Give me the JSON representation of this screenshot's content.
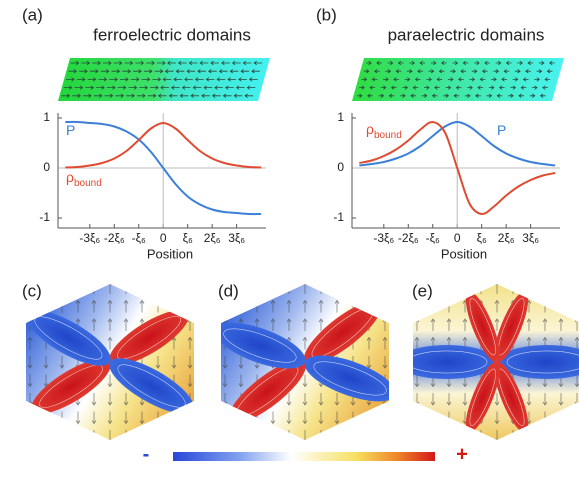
{
  "chart_data": [
    {
      "type": "line",
      "label": "(a)",
      "title": "ferroelectric domains",
      "xlabel": "Position",
      "x": [
        -4,
        -3.5,
        -3,
        -2.5,
        -2,
        -1.5,
        -1,
        -0.5,
        0,
        0.5,
        1,
        1.5,
        2,
        2.5,
        3,
        3.5,
        4
      ],
      "series": [
        {
          "name": "P",
          "color": "#3a7fd8",
          "values": [
            0.92,
            0.92,
            0.9,
            0.88,
            0.83,
            0.73,
            0.57,
            0.32,
            0,
            -0.32,
            -0.57,
            -0.73,
            -0.83,
            -0.88,
            -0.9,
            -0.92,
            -0.92
          ]
        },
        {
          "name": "ρ",
          "name_subscript": "bound",
          "color": "#e04a30",
          "values": [
            0.01,
            0.02,
            0.05,
            0.1,
            0.19,
            0.34,
            0.56,
            0.79,
            0.9,
            0.79,
            0.56,
            0.34,
            0.19,
            0.1,
            0.05,
            0.02,
            0.01
          ]
        }
      ],
      "xlim": [
        -4.3,
        4.2
      ],
      "ylim": [
        -1.2,
        1.1
      ],
      "xticks": [
        {
          "value": -3,
          "label": "-3ξ₆"
        },
        {
          "value": -2,
          "label": "-2ξ₆"
        },
        {
          "value": -1,
          "label": "-ξ₆"
        },
        0,
        {
          "value": 1,
          "label": "ξ₆"
        },
        {
          "value": 2,
          "label": "2ξ₆"
        },
        {
          "value": 3,
          "label": "3ξ₆"
        }
      ],
      "yticks": [
        -1,
        0,
        1
      ]
    },
    {
      "type": "line",
      "label": "(b)",
      "title": "paraelectric domains",
      "xlabel": "Position",
      "x": [
        -4,
        -3.5,
        -3,
        -2.5,
        -2,
        -1.5,
        -1,
        -0.5,
        0,
        0.5,
        1,
        1.5,
        2,
        2.5,
        3,
        3.5,
        4
      ],
      "series": [
        {
          "name": "P",
          "color": "#3a7fd8",
          "values": [
            0.05,
            0.08,
            0.12,
            0.19,
            0.29,
            0.44,
            0.64,
            0.83,
            0.92,
            0.83,
            0.64,
            0.44,
            0.29,
            0.19,
            0.12,
            0.08,
            0.05
          ]
        },
        {
          "name": "ρ",
          "name_subscript": "bound",
          "color": "#e04a30",
          "values": [
            0.1,
            0.15,
            0.24,
            0.37,
            0.55,
            0.77,
            0.92,
            0.71,
            0,
            -0.71,
            -0.92,
            -0.77,
            -0.55,
            -0.37,
            -0.24,
            -0.15,
            -0.1
          ]
        }
      ],
      "xlim": [
        -4.3,
        4.2
      ],
      "ylim": [
        -1.2,
        1.1
      ],
      "xticks": [
        {
          "value": -3,
          "label": "-3ξ₆"
        },
        {
          "value": -2,
          "label": "-2ξ₆"
        },
        {
          "value": -1,
          "label": "-ξ₆"
        },
        0,
        {
          "value": 1,
          "label": "ξ₆"
        },
        {
          "value": 2,
          "label": "2ξ₆"
        },
        {
          "value": 3,
          "label": "3ξ₆"
        }
      ],
      "yticks": [
        -1,
        0,
        1
      ]
    }
  ],
  "map_panels": [
    {
      "label": "(c)"
    },
    {
      "label": "(d)"
    },
    {
      "label": "(e)"
    }
  ],
  "colorbar": {
    "min_label": "-",
    "max_label": "+"
  }
}
